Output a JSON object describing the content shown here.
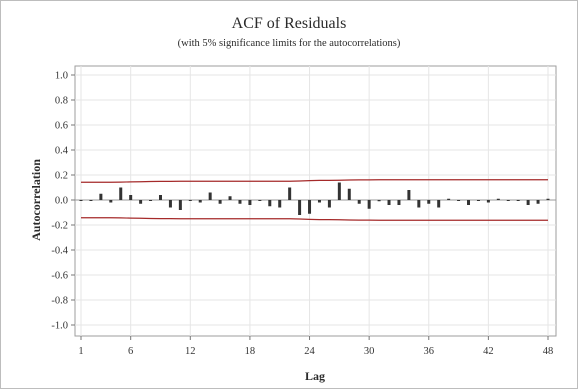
{
  "chart_data": {
    "type": "bar",
    "title": "ACF of Residuals",
    "subtitle": "(with 5% significance limits for the autocorrelations)",
    "xlabel": "Lag",
    "ylabel": "Autocorrelation",
    "xlim": [
      1,
      48
    ],
    "ylim": [
      -1.0,
      1.0
    ],
    "x_ticks": [
      1,
      6,
      12,
      18,
      24,
      30,
      36,
      42,
      48
    ],
    "y_ticks": [
      "1.0",
      "0.8",
      "0.6",
      "0.4",
      "0.2",
      "0.0",
      "-0.2",
      "-0.4",
      "-0.6",
      "-0.8",
      "-1.0"
    ],
    "grid": true,
    "series": [
      {
        "type": "bar",
        "x": [
          1,
          2,
          3,
          4,
          5,
          6,
          7,
          8,
          9,
          10,
          11,
          12,
          13,
          14,
          15,
          16,
          17,
          18,
          19,
          20,
          21,
          22,
          23,
          24,
          25,
          26,
          27,
          28,
          29,
          30,
          31,
          32,
          33,
          34,
          35,
          36,
          37,
          38,
          39,
          40,
          41,
          42,
          43,
          44,
          45,
          46,
          47,
          48
        ],
        "values": [
          0.0,
          0.0,
          0.05,
          -0.02,
          0.1,
          0.04,
          -0.03,
          0.0,
          0.04,
          -0.06,
          -0.08,
          0.0,
          -0.02,
          0.06,
          -0.03,
          0.03,
          -0.03,
          -0.04,
          0.0,
          -0.05,
          -0.06,
          0.1,
          -0.12,
          -0.11,
          -0.02,
          -0.06,
          0.14,
          0.09,
          -0.03,
          -0.07,
          -0.01,
          -0.04,
          -0.04,
          0.08,
          -0.06,
          -0.03,
          -0.06,
          0.01,
          0.0,
          -0.04,
          0.0,
          -0.02,
          0.01,
          0.0,
          0.0,
          -0.04,
          -0.03,
          0.01
        ]
      }
    ],
    "significance_limits": {
      "x": [
        1,
        2,
        3,
        4,
        5,
        6,
        7,
        8,
        9,
        10,
        11,
        12,
        13,
        14,
        15,
        16,
        17,
        18,
        19,
        20,
        21,
        22,
        23,
        24,
        25,
        26,
        27,
        28,
        29,
        30,
        31,
        32,
        33,
        34,
        35,
        36,
        37,
        38,
        39,
        40,
        41,
        42,
        43,
        44,
        45,
        46,
        47,
        48
      ],
      "upper": [
        0.142,
        0.142,
        0.142,
        0.142,
        0.143,
        0.145,
        0.146,
        0.148,
        0.149,
        0.149,
        0.15,
        0.15,
        0.15,
        0.15,
        0.15,
        0.15,
        0.15,
        0.15,
        0.15,
        0.15,
        0.15,
        0.15,
        0.152,
        0.155,
        0.157,
        0.157,
        0.158,
        0.16,
        0.161,
        0.161,
        0.162,
        0.162,
        0.162,
        0.162,
        0.162,
        0.162,
        0.162,
        0.162,
        0.162,
        0.162,
        0.162,
        0.162,
        0.162,
        0.162,
        0.162,
        0.162,
        0.162,
        0.162
      ],
      "color": "#a52a2a"
    },
    "colors": {
      "bars": "#333333",
      "limits": "#a52a2a",
      "grid": "#e6e6e6",
      "zero_line": "#9a9a9a"
    }
  }
}
